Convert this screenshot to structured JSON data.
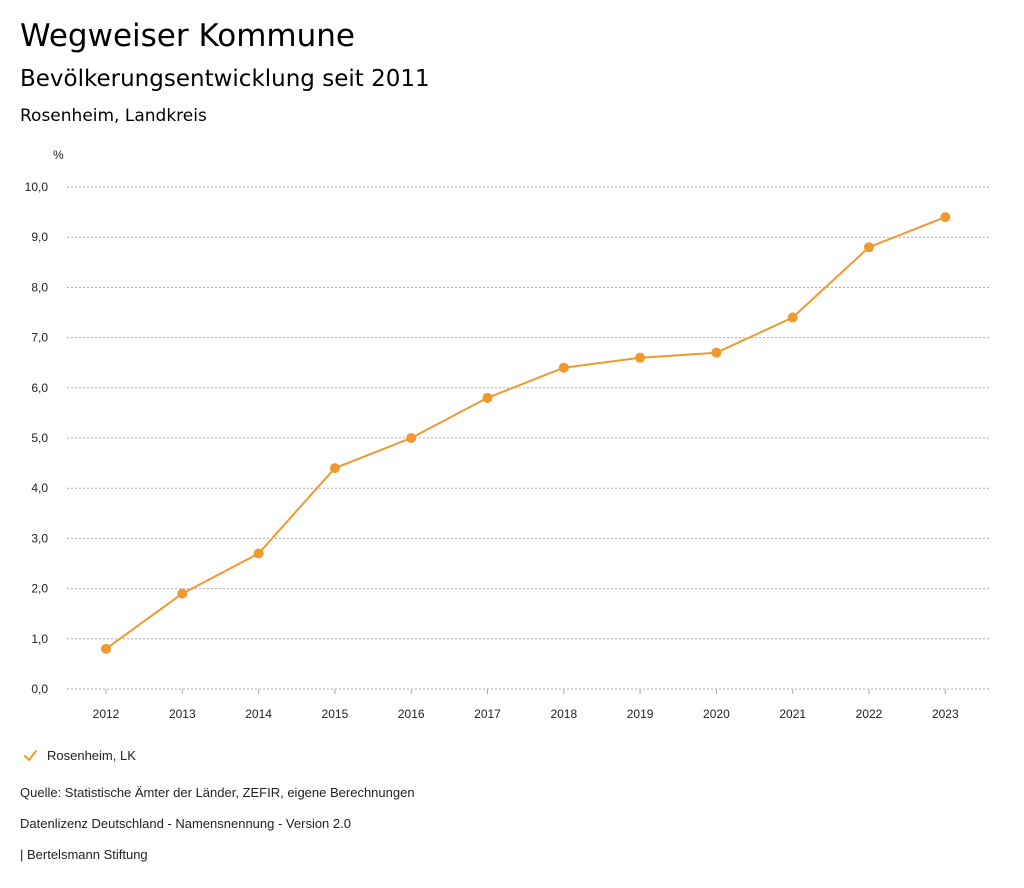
{
  "header": {
    "title": "Wegweiser Kommune",
    "subtitle": "Bevölkerungsentwicklung seit 2011",
    "region": "Rosenheim, Landkreis"
  },
  "chart_data": {
    "type": "line",
    "title": "Bevölkerungsentwicklung seit 2011",
    "subtitle": "Rosenheim, Landkreis",
    "ylabel": "%",
    "xlabel": "",
    "ylim": [
      0,
      10
    ],
    "y_ticks": [
      0,
      1,
      2,
      3,
      4,
      5,
      6,
      7,
      8,
      9,
      10
    ],
    "y_tick_labels": [
      "0,0",
      "1,0",
      "2,0",
      "3,0",
      "4,0",
      "5,0",
      "6,0",
      "7,0",
      "8,0",
      "9,0",
      "10,0"
    ],
    "categories": [
      "2012",
      "2013",
      "2014",
      "2015",
      "2016",
      "2017",
      "2018",
      "2019",
      "2020",
      "2021",
      "2022",
      "2023"
    ],
    "grid": true,
    "legend_position": "bottom-left",
    "series": [
      {
        "name": "Rosenheim, LK",
        "color": "#f0992e",
        "values": [
          0.8,
          1.9,
          2.7,
          4.4,
          5.0,
          5.8,
          6.4,
          6.6,
          6.7,
          7.4,
          8.8,
          9.4
        ]
      }
    ]
  },
  "legend": {
    "icon": "check-icon",
    "label": "Rosenheim, LK"
  },
  "footer": {
    "source": "Quelle: Statistische Ämter der Länder, ZEFIR, eigene Berechnungen",
    "license": "Datenlizenz Deutschland - Namensnennung - Version 2.0",
    "publisher": "| Bertelsmann Stiftung"
  },
  "colors": {
    "accent": "#f0992e",
    "grid": "#a8a8a8"
  }
}
